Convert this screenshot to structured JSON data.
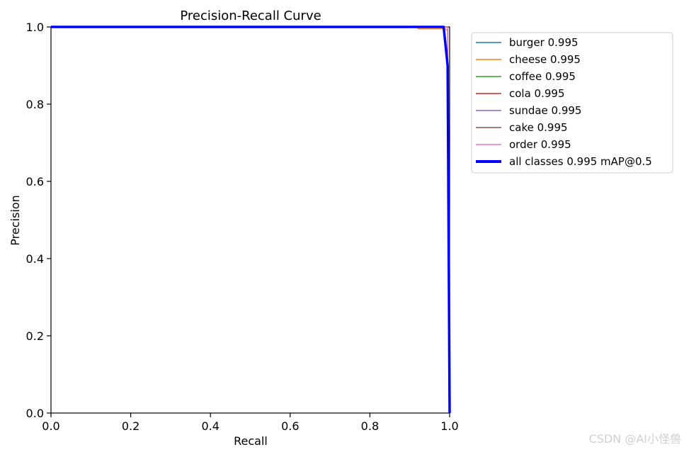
{
  "chart_data": {
    "type": "line",
    "title": "Precision-Recall Curve",
    "xlabel": "Recall",
    "ylabel": "Precision",
    "xlim": [
      0.0,
      1.0
    ],
    "ylim": [
      0.0,
      1.0
    ],
    "xticks": [
      "0.0",
      "0.2",
      "0.4",
      "0.6",
      "0.8",
      "1.0"
    ],
    "yticks": [
      "0.0",
      "0.2",
      "0.4",
      "0.6",
      "0.8",
      "1.0"
    ],
    "grid": false,
    "legend_position": "outside-top-right",
    "series": [
      {
        "name": "burger 0.995",
        "color": "#1f77b4",
        "points": [
          [
            0.0,
            1.0
          ],
          [
            0.99,
            1.0
          ],
          [
            0.995,
            1.0
          ],
          [
            1.0,
            0.0
          ]
        ]
      },
      {
        "name": "cheese 0.995",
        "color": "#ff7f0e",
        "points": [
          [
            0.0,
            1.0
          ],
          [
            0.92,
            1.0
          ],
          [
            0.921,
            0.995
          ],
          [
            0.99,
            0.995
          ],
          [
            0.995,
            0.99
          ],
          [
            1.0,
            0.0
          ]
        ]
      },
      {
        "name": "coffee 0.995",
        "color": "#2ca02c",
        "points": [
          [
            0.0,
            1.0
          ],
          [
            0.99,
            1.0
          ],
          [
            0.995,
            1.0
          ],
          [
            1.0,
            0.0
          ]
        ]
      },
      {
        "name": "cola 0.995",
        "color": "#d62728",
        "points": [
          [
            0.0,
            1.0
          ],
          [
            0.99,
            1.0
          ],
          [
            0.995,
            1.0
          ],
          [
            1.0,
            0.0
          ]
        ]
      },
      {
        "name": "sundae 0.995",
        "color": "#9467bd",
        "points": [
          [
            0.0,
            1.0
          ],
          [
            0.99,
            1.0
          ],
          [
            0.995,
            1.0
          ],
          [
            1.0,
            0.0
          ]
        ]
      },
      {
        "name": "cake 0.995",
        "color": "#8c564b",
        "points": [
          [
            0.0,
            1.0
          ],
          [
            0.99,
            1.0
          ],
          [
            0.995,
            1.0
          ],
          [
            1.0,
            0.0
          ]
        ]
      },
      {
        "name": "order 0.995",
        "color": "#e377c2",
        "points": [
          [
            0.0,
            1.0
          ],
          [
            0.99,
            1.0
          ],
          [
            0.995,
            1.0
          ],
          [
            1.0,
            0.0
          ]
        ]
      },
      {
        "name": "all classes 0.995 mAP@0.5",
        "color": "#0000ff",
        "bold": true,
        "points": [
          [
            0.0,
            1.0
          ],
          [
            0.985,
            1.0
          ],
          [
            0.995,
            0.9
          ],
          [
            1.0,
            0.0
          ]
        ]
      }
    ]
  },
  "watermark": "CSDN @AI小怪兽"
}
